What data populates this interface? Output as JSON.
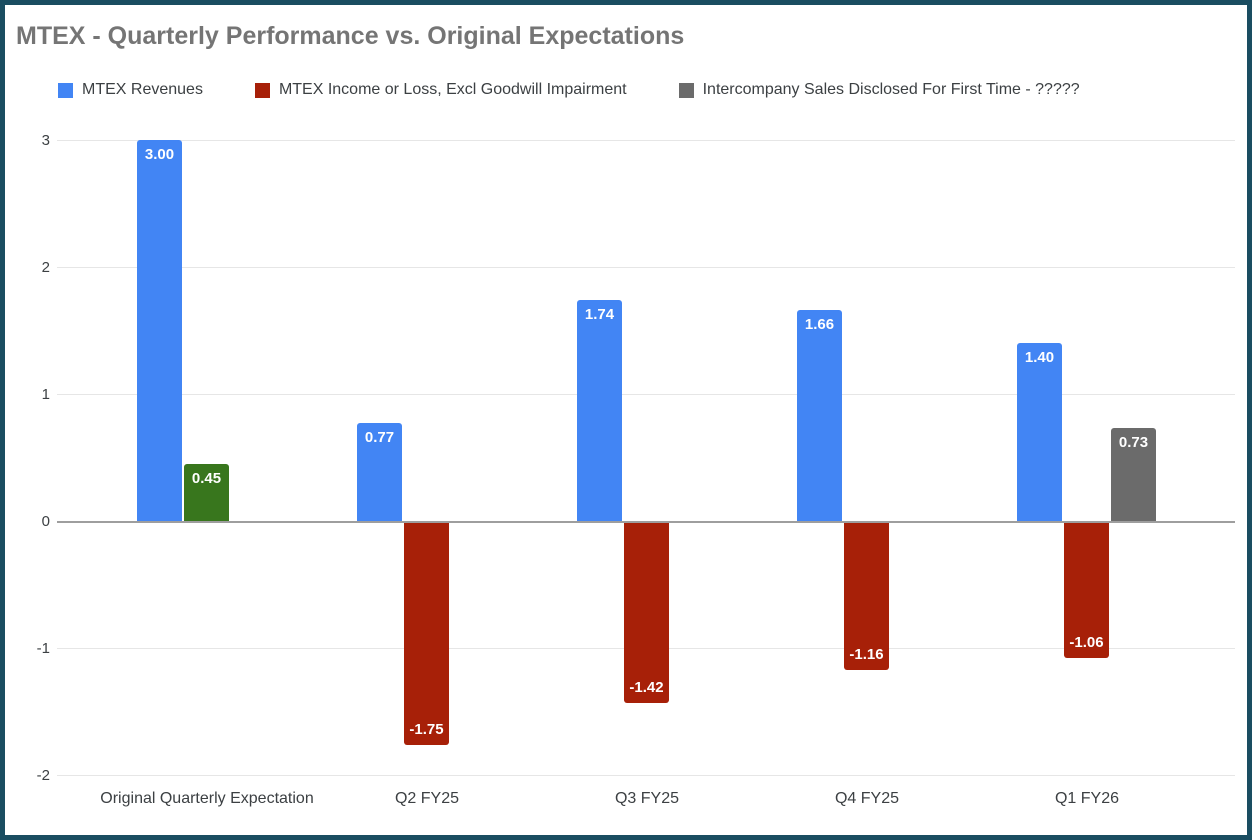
{
  "chart_data": {
    "type": "bar",
    "title": "MTEX - Quarterly Performance vs. Original Expectations",
    "categories": [
      "Original Quarterly Expectation",
      "Q2 FY25",
      "Q3 FY25",
      "Q4 FY25",
      "Q1 FY26"
    ],
    "series": [
      {
        "name": "MTEX Revenues",
        "color": "#4285f4",
        "values": [
          3.0,
          0.77,
          1.74,
          1.66,
          1.4
        ]
      },
      {
        "name": "MTEX Income or Loss, Excl Goodwill Impairment",
        "color": "#a72008",
        "values": [
          0.45,
          -1.75,
          -1.42,
          -1.16,
          -1.06
        ],
        "point_colors": {
          "0": "#38761d"
        }
      },
      {
        "name": "Intercompany Sales Disclosed For First Time - ?????",
        "color": "#6b6b6b",
        "values": [
          null,
          null,
          null,
          null,
          0.73
        ]
      }
    ],
    "value_labels": {
      "format": "2-decimals",
      "shown": [
        "3.00",
        "0.45",
        "0.77",
        "-1.75",
        "1.74",
        "-1.42",
        "1.66",
        "-1.16",
        "1.40",
        "-1.06",
        "0.73"
      ]
    },
    "xlabel": "",
    "ylabel": "",
    "ylim": [
      -2,
      3
    ],
    "yticks": [
      3,
      2,
      1,
      0,
      -1,
      -2
    ],
    "grid": true,
    "legend_position": "top",
    "annotation_text_color": "#ffffff"
  },
  "frame": {
    "border_color": "#1a4d61",
    "background_color": "#ffffff",
    "title_color": "#757575",
    "gridline_color": "#e6e6e6",
    "baseline_color": "#9e9e9e",
    "axis_text_color": "#3c4043"
  }
}
